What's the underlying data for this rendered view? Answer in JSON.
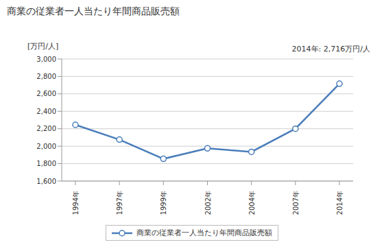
{
  "chart_data": {
    "type": "line",
    "title": "商業の従業者一人当たり年間商品販売額",
    "y_label": "[万円/人]",
    "annotation": "2014年: 2,716万円/人",
    "categories": [
      "1994年",
      "1997年",
      "1999年",
      "2002年",
      "2004年",
      "2007年",
      "2014年"
    ],
    "series": [
      {
        "name": "商業の従業者一人当たり年間商品販売額",
        "color": "#4a7ebb",
        "marker": "circle",
        "values": [
          2245,
          2075,
          1855,
          1975,
          1935,
          2200,
          2716
        ]
      }
    ],
    "ylim": [
      1600,
      3000
    ],
    "yticks": [
      {
        "value": 1600,
        "label": "1,600"
      },
      {
        "value": 1800,
        "label": "1,800"
      },
      {
        "value": 2000,
        "label": "2,000"
      },
      {
        "value": 2200,
        "label": "2,200"
      },
      {
        "value": 2400,
        "label": "2,400"
      },
      {
        "value": 2600,
        "label": "2,600"
      },
      {
        "value": 2800,
        "label": "2,800"
      },
      {
        "value": 3000,
        "label": "3,000"
      }
    ],
    "grid": true,
    "legend": "bottom"
  }
}
